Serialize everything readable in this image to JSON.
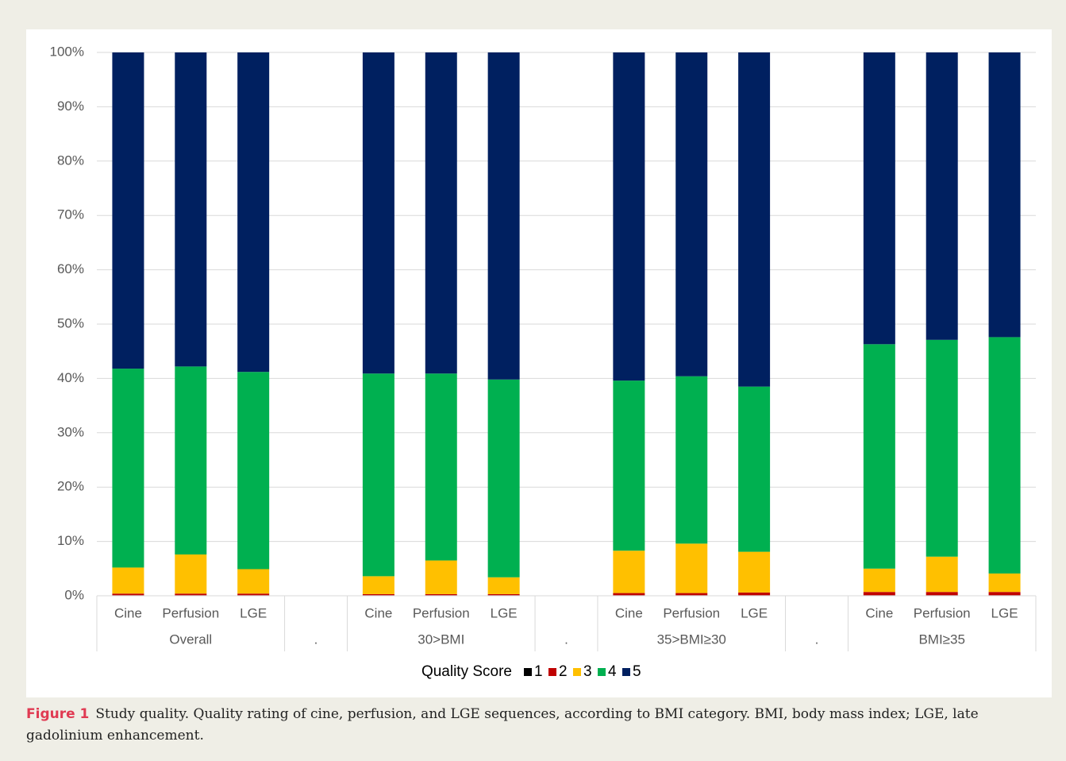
{
  "chart_data": {
    "type": "stacked_bar",
    "categories": [
      "Cine",
      "Perfusion",
      "LGE",
      null,
      "Cine",
      "Perfusion",
      "LGE",
      null,
      "Cine",
      "Perfusion",
      "LGE",
      null,
      "Cine",
      "Perfusion",
      "LGE"
    ],
    "group_labels": [
      "Overall",
      ".",
      "30>BMI",
      ".",
      "35>BMI≥30",
      ".",
      "BMI≥35"
    ],
    "legend_title": "Quality Score",
    "series": [
      {
        "name": "1",
        "color": "#000000",
        "values": [
          0.1,
          0.1,
          0.1,
          null,
          0.1,
          0.1,
          0.1,
          null,
          0.1,
          0.1,
          0.1,
          null,
          0.1,
          0.1,
          0.1
        ]
      },
      {
        "name": "2",
        "color": "#c00000",
        "values": [
          0.3,
          0.3,
          0.3,
          null,
          0.2,
          0.2,
          0.2,
          null,
          0.4,
          0.4,
          0.5,
          null,
          0.6,
          0.6,
          0.6
        ]
      },
      {
        "name": "3",
        "color": "#ffc000",
        "values": [
          4.8,
          7.2,
          4.5,
          null,
          3.3,
          6.2,
          3.1,
          null,
          7.8,
          9.1,
          7.5,
          null,
          4.3,
          6.5,
          3.4
        ]
      },
      {
        "name": "4",
        "color": "#00b050",
        "values": [
          36.6,
          34.6,
          36.3,
          null,
          37.3,
          34.4,
          36.4,
          null,
          31.3,
          30.8,
          30.4,
          null,
          41.3,
          39.9,
          43.5
        ]
      },
      {
        "name": "5",
        "color": "#002060",
        "values": [
          58.2,
          57.8,
          58.8,
          null,
          59.1,
          59.1,
          60.2,
          null,
          60.4,
          59.6,
          61.5,
          null,
          53.7,
          52.9,
          52.4
        ]
      }
    ],
    "ylim": [
      0,
      100
    ],
    "yticks": [
      {
        "value": 0,
        "label": "0%"
      },
      {
        "value": 10,
        "label": "10%"
      },
      {
        "value": 20,
        "label": "20%"
      },
      {
        "value": 30,
        "label": "30%"
      },
      {
        "value": 40,
        "label": "40%"
      },
      {
        "value": 50,
        "label": "50%"
      },
      {
        "value": 60,
        "label": "60%"
      },
      {
        "value": 70,
        "label": "70%"
      },
      {
        "value": 80,
        "label": "80%"
      },
      {
        "value": 90,
        "label": "90%"
      },
      {
        "value": 100,
        "label": "100%"
      }
    ],
    "grid": true
  },
  "caption": {
    "label": "Figure 1",
    "text": "Study quality. Quality rating of cine, perfusion, and LGE sequences, according to BMI category. BMI, body mass index; LGE, late gadolinium enhancement."
  }
}
